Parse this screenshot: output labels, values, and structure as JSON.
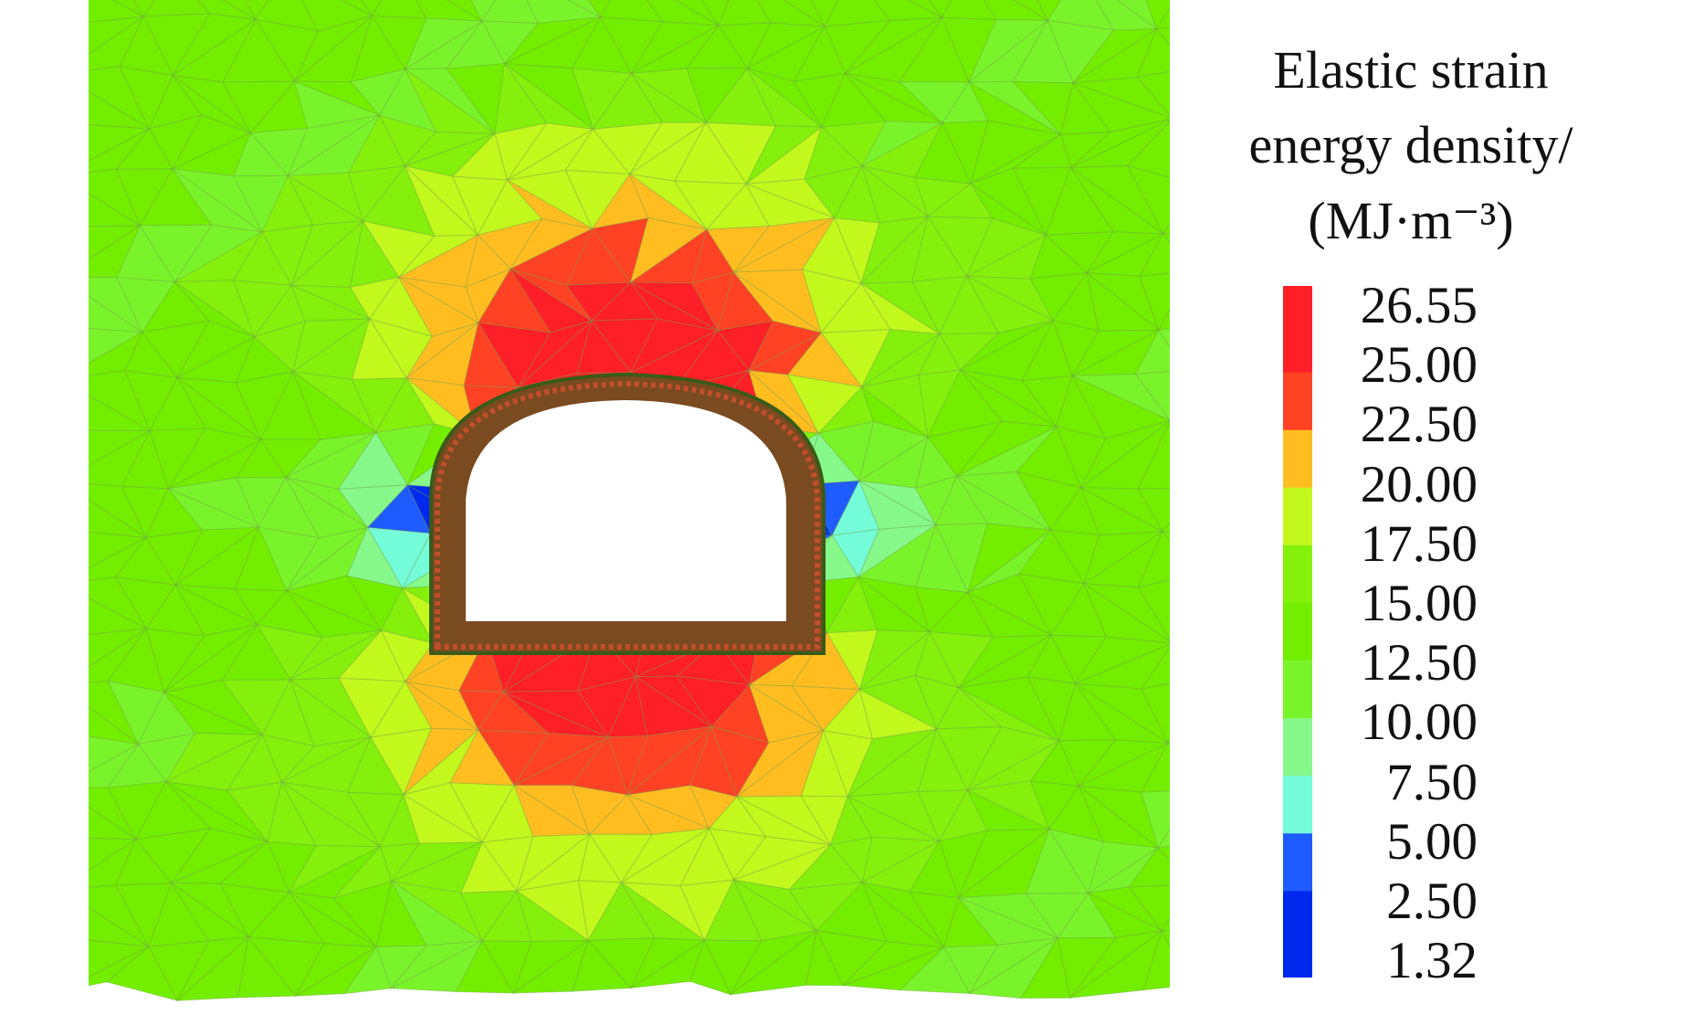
{
  "chart_data": {
    "type": "heatmap",
    "title_lines": [
      "Elastic strain",
      "energy density/",
      "(MJ·m⁻³)"
    ],
    "colorbar": {
      "ticks": [
        "26.55",
        "25.00",
        "22.50",
        "20.00",
        "17.50",
        "15.00",
        "12.50",
        "10.00",
        "7.50",
        "5.00",
        "2.50",
        "1.32"
      ],
      "tick_values": [
        26.55,
        25,
        22.5,
        20,
        17.5,
        15,
        12.5,
        10,
        7.5,
        5,
        2.5,
        1.32
      ],
      "range": [
        1.32,
        26.55
      ],
      "colors_top_to_bottom": [
        "#ff1f26",
        "#ff4224",
        "#ffbd20",
        "#c2f81c",
        "#84f00c",
        "#73ee00",
        "#7af42a",
        "#86f98a",
        "#74fcd8",
        "#1e5cff",
        "#0029ee"
      ]
    },
    "description_of_field": "finite element mesh contour around tunnel opening"
  }
}
